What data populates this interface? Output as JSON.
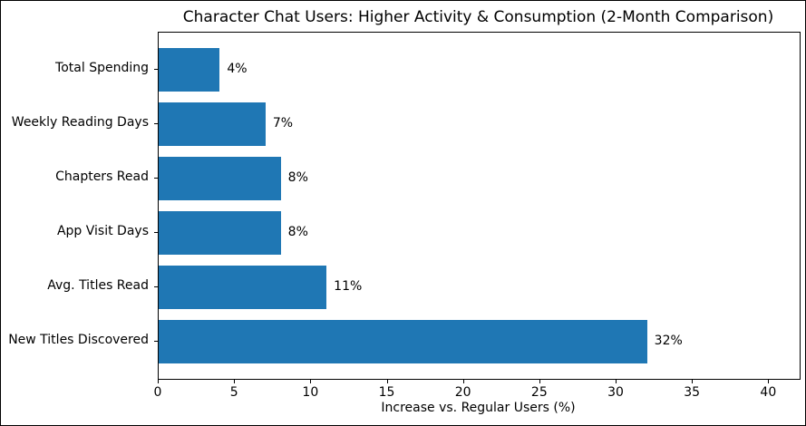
{
  "chart_data": {
    "type": "bar",
    "orientation": "horizontal",
    "title": "Character Chat Users: Higher Activity & Consumption (2-Month Comparison)",
    "xlabel": "Increase vs. Regular Users (%)",
    "ylabel": "",
    "categories": [
      "Total Spending",
      "Weekly Reading Days",
      "Chapters Read",
      "App Visit Days",
      "Avg. Titles Read",
      "New Titles Discovered"
    ],
    "values": [
      4,
      7,
      8,
      8,
      11,
      32
    ],
    "value_labels": [
      "4%",
      "7%",
      "8%",
      "8%",
      "11%",
      "32%"
    ],
    "xlim": [
      0,
      42
    ],
    "xticks": [
      0,
      5,
      10,
      15,
      20,
      25,
      30,
      35,
      40
    ],
    "xtick_labels": [
      "0",
      "5",
      "10",
      "15",
      "20",
      "25",
      "30",
      "35",
      "40"
    ],
    "bar_color": "#1f77b4",
    "grid": false,
    "legend": null,
    "background_color": "#ffffff",
    "axis_color": "#000000"
  }
}
